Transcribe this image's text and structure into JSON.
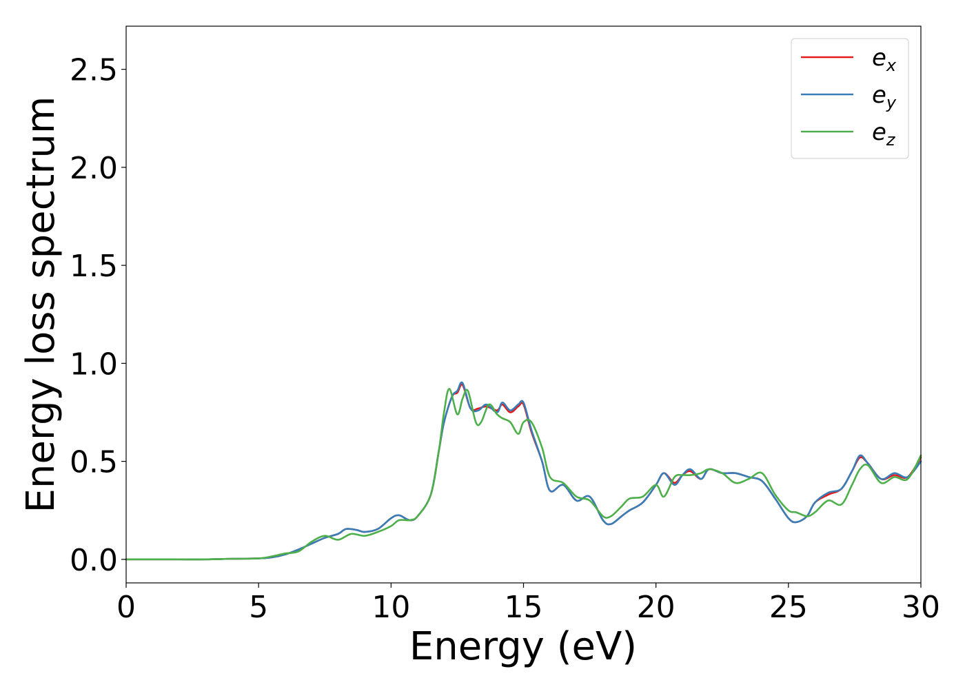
{
  "chart_data": {
    "type": "line",
    "xlabel": "Energy (eV)",
    "ylabel": "Energy loss spectrum",
    "xlim": [
      0,
      30
    ],
    "ylim": [
      -0.12,
      2.72
    ],
    "xticks": [
      0,
      5,
      10,
      15,
      20,
      25,
      30
    ],
    "xtick_labels": [
      "0",
      "5",
      "10",
      "15",
      "20",
      "25",
      "30"
    ],
    "yticks": [
      0.0,
      0.5,
      1.0,
      1.5,
      2.0,
      2.5
    ],
    "ytick_labels": [
      "0.0",
      "0.5",
      "1.0",
      "1.5",
      "2.0",
      "2.5"
    ],
    "grid": false,
    "legend_position": "top-right",
    "series": [
      {
        "name_base": "e",
        "name_sub": "x",
        "color": "#e41a1c",
        "x": [
          0,
          1,
          2,
          3,
          4,
          5,
          5.5,
          6,
          6.5,
          7,
          7.5,
          8,
          8.3,
          8.7,
          9,
          9.5,
          10,
          10.3,
          10.7,
          11,
          11.5,
          11.8,
          12,
          12.3,
          12.5,
          12.7,
          13,
          13.3,
          13.6,
          14,
          14.2,
          14.5,
          14.8,
          15,
          15.3,
          15.7,
          16,
          16.5,
          17,
          17.5,
          18,
          18.3,
          18.7,
          19,
          19.5,
          20,
          20.3,
          20.7,
          21,
          21.3,
          21.7,
          22,
          22.5,
          23,
          23.5,
          24,
          24.5,
          25,
          25.3,
          25.7,
          26,
          26.5,
          27,
          27.4,
          27.7,
          28,
          28.5,
          29,
          29.5,
          30
        ],
        "y": [
          0,
          0,
          0,
          0,
          0.003,
          0.005,
          0.01,
          0.025,
          0.05,
          0.08,
          0.11,
          0.13,
          0.155,
          0.15,
          0.14,
          0.155,
          0.21,
          0.225,
          0.2,
          0.22,
          0.33,
          0.55,
          0.7,
          0.83,
          0.85,
          0.89,
          0.77,
          0.77,
          0.78,
          0.76,
          0.79,
          0.75,
          0.78,
          0.79,
          0.65,
          0.5,
          0.35,
          0.38,
          0.3,
          0.32,
          0.2,
          0.18,
          0.22,
          0.25,
          0.29,
          0.38,
          0.44,
          0.39,
          0.43,
          0.45,
          0.41,
          0.46,
          0.44,
          0.44,
          0.42,
          0.4,
          0.31,
          0.21,
          0.19,
          0.22,
          0.29,
          0.33,
          0.36,
          0.45,
          0.52,
          0.49,
          0.41,
          0.43,
          0.42,
          0.52
        ]
      },
      {
        "name_base": "e",
        "name_sub": "y",
        "color": "#377eb8",
        "x": [
          0,
          1,
          2,
          3,
          4,
          5,
          5.5,
          6,
          6.5,
          7,
          7.5,
          8,
          8.3,
          8.7,
          9,
          9.5,
          10,
          10.3,
          10.7,
          11,
          11.5,
          11.8,
          12,
          12.3,
          12.5,
          12.7,
          13,
          13.3,
          13.6,
          14,
          14.2,
          14.5,
          14.8,
          15,
          15.3,
          15.7,
          16,
          16.5,
          17,
          17.5,
          18,
          18.3,
          18.7,
          19,
          19.5,
          20,
          20.3,
          20.7,
          21,
          21.3,
          21.7,
          22,
          22.5,
          23,
          23.5,
          24,
          24.5,
          25,
          25.3,
          25.7,
          26,
          26.5,
          27,
          27.4,
          27.7,
          28,
          28.5,
          29,
          29.5,
          30
        ],
        "y": [
          0,
          0,
          0,
          0,
          0.003,
          0.005,
          0.01,
          0.025,
          0.05,
          0.08,
          0.11,
          0.13,
          0.155,
          0.15,
          0.14,
          0.155,
          0.21,
          0.225,
          0.2,
          0.22,
          0.33,
          0.55,
          0.7,
          0.83,
          0.86,
          0.9,
          0.77,
          0.76,
          0.79,
          0.75,
          0.8,
          0.76,
          0.79,
          0.8,
          0.66,
          0.5,
          0.35,
          0.38,
          0.3,
          0.32,
          0.2,
          0.18,
          0.22,
          0.25,
          0.29,
          0.38,
          0.44,
          0.38,
          0.43,
          0.46,
          0.41,
          0.46,
          0.44,
          0.44,
          0.42,
          0.4,
          0.31,
          0.21,
          0.19,
          0.22,
          0.29,
          0.34,
          0.36,
          0.45,
          0.53,
          0.49,
          0.41,
          0.44,
          0.42,
          0.5
        ]
      },
      {
        "name_base": "e",
        "name_sub": "z",
        "color": "#4daf4a",
        "x": [
          0,
          1,
          2,
          3,
          4,
          5,
          5.5,
          6,
          6.5,
          7,
          7.5,
          8,
          8.5,
          9,
          9.5,
          10,
          10.3,
          10.7,
          11,
          11.5,
          11.8,
          12,
          12.2,
          12.5,
          12.7,
          12.9,
          13.2,
          13.4,
          13.7,
          14,
          14.2,
          14.5,
          14.8,
          15,
          15.3,
          15.7,
          16,
          16.5,
          17,
          17.5,
          18,
          18.3,
          18.7,
          19,
          19.5,
          20,
          20.3,
          20.7,
          21,
          21.3,
          21.7,
          22,
          22.5,
          23,
          23.5,
          24,
          24.5,
          25,
          25.3,
          25.7,
          26,
          26.5,
          27,
          27.4,
          27.7,
          28,
          28.5,
          29,
          29.5,
          30
        ],
        "y": [
          0,
          0,
          0,
          0,
          0.003,
          0.005,
          0.015,
          0.03,
          0.04,
          0.09,
          0.12,
          0.1,
          0.13,
          0.12,
          0.14,
          0.17,
          0.2,
          0.2,
          0.22,
          0.33,
          0.55,
          0.75,
          0.87,
          0.74,
          0.82,
          0.86,
          0.7,
          0.7,
          0.79,
          0.74,
          0.72,
          0.7,
          0.64,
          0.7,
          0.7,
          0.57,
          0.42,
          0.39,
          0.32,
          0.3,
          0.22,
          0.22,
          0.27,
          0.31,
          0.32,
          0.38,
          0.32,
          0.42,
          0.43,
          0.43,
          0.44,
          0.46,
          0.44,
          0.39,
          0.41,
          0.44,
          0.33,
          0.25,
          0.24,
          0.22,
          0.24,
          0.3,
          0.28,
          0.38,
          0.46,
          0.48,
          0.39,
          0.42,
          0.41,
          0.53
        ]
      }
    ]
  }
}
